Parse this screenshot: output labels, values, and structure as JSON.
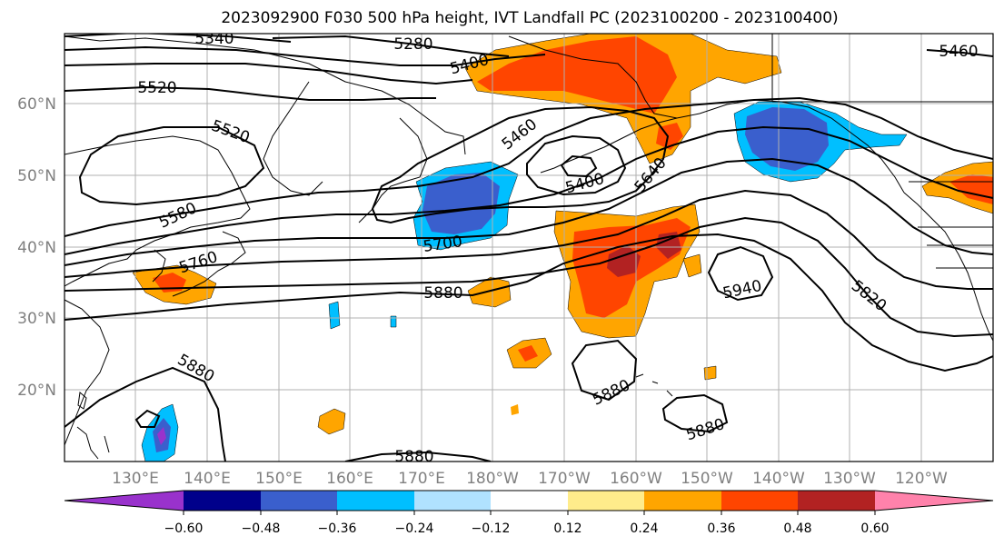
{
  "title": "2023092900 F030 500 hPa height, IVT Landfall PC (2023100200 - 2023100400)",
  "lat_labels": [
    "60°N",
    "50°N",
    "40°N",
    "30°N",
    "20°N"
  ],
  "lon_labels": [
    "130°E",
    "140°E",
    "150°E",
    "160°E",
    "170°E",
    "180°W",
    "170°W",
    "160°W",
    "150°W",
    "140°W",
    "130°W",
    "120°W"
  ],
  "contour_labels": [
    "5340",
    "5280",
    "5460",
    "5400",
    "5520",
    "5520",
    "5460",
    "5400",
    "5640",
    "5580",
    "5700",
    "5760",
    "5880",
    "5940",
    "5820",
    "5880",
    "5880",
    "5880",
    "5880"
  ],
  "colorbar": {
    "ticks": [
      "−0.60",
      "−0.48",
      "−0.36",
      "−0.24",
      "−0.12",
      "0.12",
      "0.24",
      "0.36",
      "0.48",
      "0.60"
    ],
    "colors": [
      "#9932cc",
      "#00008b",
      "#3a5fcd",
      "#00bfff",
      "#b0e2ff",
      "#ffffff",
      "#ffec8b",
      "#ffa500",
      "#ff4500",
      "#b22222",
      "#ff82ab"
    ]
  }
}
